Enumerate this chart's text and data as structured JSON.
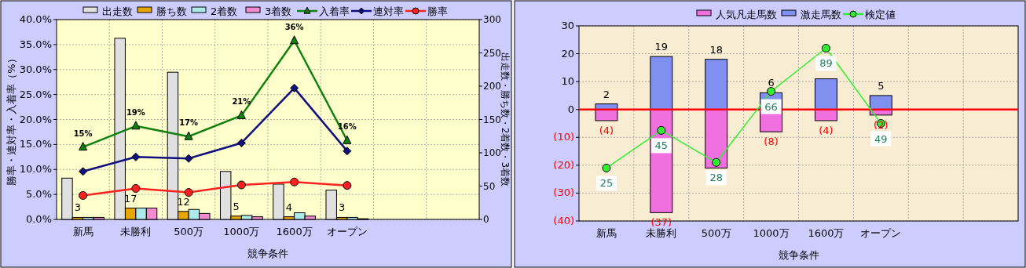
{
  "chart_data": [
    {
      "type": "bar",
      "xlabel": "競争条件",
      "ylabel": "勝率・連対率・入着率（%）",
      "y2label": "出走数・勝ち数・2着数・3着数",
      "categories": [
        "新馬",
        "未勝利",
        "500万",
        "1000万",
        "1600万",
        "オープン",
        null,
        null
      ],
      "series": [
        {
          "name": "出走数",
          "axis": "y2",
          "color": "#e0e0e0",
          "values": [
            62,
            272,
            221,
            72,
            53,
            44,
            null,
            null
          ]
        },
        {
          "name": "勝ち数",
          "axis": "y2",
          "color": "#e6a800",
          "values": [
            3,
            17,
            12,
            5,
            4,
            3,
            null,
            null
          ],
          "value_labels": [
            "3",
            "17",
            "12",
            "5",
            "4",
            "3",
            null,
            null
          ]
        },
        {
          "name": "2着数",
          "axis": "y2",
          "color": "#aeeaea",
          "values": [
            3,
            17,
            15,
            6,
            10,
            3,
            null,
            null
          ]
        },
        {
          "name": "3着数",
          "axis": "y2",
          "color": "#f08ccf",
          "values": [
            3,
            17,
            9,
            4,
            5,
            1,
            null,
            null
          ]
        },
        {
          "name": "入着率",
          "type": "line",
          "marker": "triangle",
          "color": "#108010",
          "values": [
            14.5,
            18.7,
            16.6,
            20.8,
            35.8,
            15.8,
            null,
            null
          ],
          "value_labels": [
            "15%",
            "19%",
            "17%",
            "21%",
            "36%",
            "16%",
            null,
            null
          ]
        },
        {
          "name": "連対率",
          "type": "line",
          "marker": "diamond",
          "color": "#101080",
          "values": [
            9.6,
            12.5,
            12.2,
            15.3,
            26.3,
            13.7,
            null,
            null
          ]
        },
        {
          "name": "勝率",
          "type": "line",
          "marker": "circle",
          "color": "#ff2020",
          "values": [
            4.8,
            6.2,
            5.4,
            6.9,
            7.5,
            6.8,
            null,
            null
          ]
        }
      ],
      "ylim": [
        0,
        40
      ],
      "yticks": [
        {
          "value": 0,
          "label": "0.0%"
        },
        {
          "value": 5,
          "label": "5.0%"
        },
        {
          "value": 10,
          "label": "10.0%"
        },
        {
          "value": 15,
          "label": "15.0%"
        },
        {
          "value": 20,
          "label": "20.0%"
        },
        {
          "value": 25,
          "label": "25.0%"
        },
        {
          "value": 30,
          "label": "30.0%"
        },
        {
          "value": 35,
          "label": "35.0%"
        },
        {
          "value": 40,
          "label": "40.0%"
        }
      ],
      "y2lim": [
        0,
        300
      ],
      "y2ticks": [
        0,
        50,
        100,
        150,
        200,
        250,
        300
      ],
      "grid": true,
      "legend": "top"
    },
    {
      "type": "bar",
      "xlabel": "競争条件",
      "stacked": true,
      "categories": [
        "新馬",
        "未勝利",
        "500万",
        "1000万",
        "1600万",
        "オープン",
        null,
        null
      ],
      "series": [
        {
          "name": "人気凡走馬数",
          "color": "#f070e0",
          "values": [
            -4,
            -37,
            -21,
            -8,
            -4,
            -2,
            null,
            null
          ],
          "value_labels": [
            "(4)",
            "(37)",
            null,
            "(8)",
            "(4)",
            "(2)",
            null,
            null
          ]
        },
        {
          "name": "激走馬数",
          "color": "#8090f0",
          "values": [
            2,
            19,
            18,
            6,
            11,
            5,
            null,
            null
          ],
          "value_labels": [
            "2",
            "19",
            "18",
            "6",
            null,
            "5",
            null,
            null
          ]
        },
        {
          "name": "検定値",
          "type": "line",
          "marker": "circle",
          "color": "#33ee33",
          "values": [
            -21,
            -7.5,
            -19,
            6.5,
            22,
            -5,
            null,
            null
          ]
        }
      ],
      "ylim": [
        -40,
        30
      ],
      "yticks": [
        {
          "value": -40,
          "label": "(40)"
        },
        {
          "value": -30,
          "label": "(30)"
        },
        {
          "value": -20,
          "label": "(20)"
        },
        {
          "value": -10,
          "label": "(10)"
        },
        0,
        10,
        20,
        30
      ],
      "ref_lines": [
        {
          "axis": "y",
          "value": 0,
          "color": "#ff0000"
        }
      ],
      "annotations": [
        {
          "text": "25",
          "x": "新馬",
          "y": -21
        },
        {
          "text": "45",
          "x": "未勝利",
          "y": -7.5
        },
        {
          "text": "28",
          "x": "500万",
          "y": -19
        },
        {
          "text": "66",
          "x": "1000万",
          "y": 6.5
        },
        {
          "text": "89",
          "x": "1600万",
          "y": 22
        },
        {
          "text": "49",
          "x": "オープン",
          "y": -5
        }
      ],
      "grid": true,
      "legend": "top"
    }
  ]
}
